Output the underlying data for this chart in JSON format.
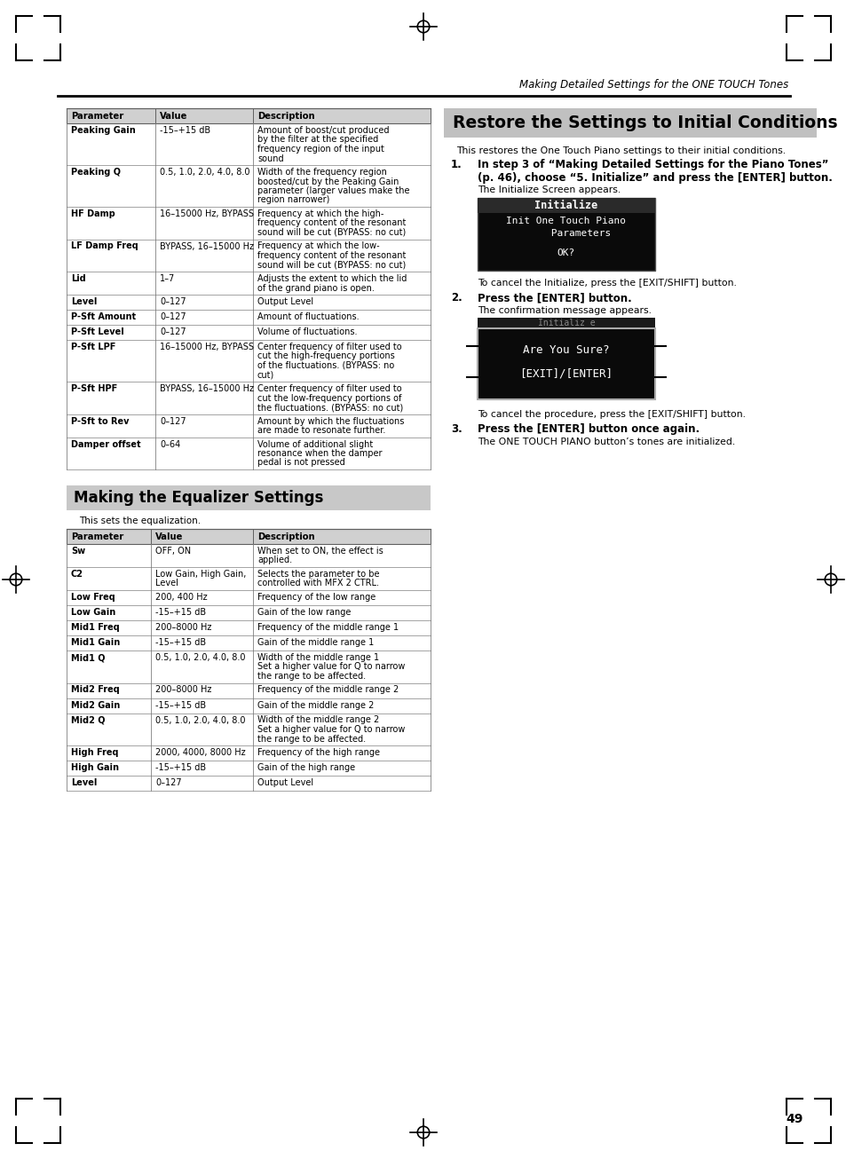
{
  "page_number": "49",
  "header_text": "Making Detailed Settings for the ONE TOUCH Tones",
  "section1_title": "Restore the Settings to Initial Conditions",
  "section1_intro": "This restores the One Touch Piano settings to their initial conditions.",
  "cancel_text1": "To cancel the Initialize, press the [EXIT/SHIFT] button.",
  "cancel_text2": "To cancel the procedure, press the [EXIT/SHIFT] button.",
  "section2_title": "Making the Equalizer Settings",
  "section2_intro": "This sets the equalization.",
  "table1_header": [
    "Parameter",
    "Value",
    "Description"
  ],
  "table1_rows": [
    [
      "Peaking Gain",
      "-15–+15 dB",
      "Amount of boost/cut produced\nby the filter at the specified\nfrequency region of the input\nsound"
    ],
    [
      "Peaking Q",
      "0.5, 1.0, 2.0, 4.0, 8.0",
      "Width of the frequency region\nboosted/cut by the Peaking Gain\nparameter (larger values make the\nregion narrower)"
    ],
    [
      "HF Damp",
      "16–15000 Hz, BYPASS",
      "Frequency at which the high-\nfrequency content of the resonant\nsound will be cut (BYPASS: no cut)"
    ],
    [
      "LF Damp Freq",
      "BYPASS, 16–15000 Hz",
      "Frequency at which the low-\nfrequency content of the resonant\nsound will be cut (BYPASS: no cut)"
    ],
    [
      "Lid",
      "1–7",
      "Adjusts the extent to which the lid\nof the grand piano is open."
    ],
    [
      "Level",
      "0–127",
      "Output Level"
    ],
    [
      "P-Sft Amount",
      "0–127",
      "Amount of fluctuations."
    ],
    [
      "P-Sft Level",
      "0–127",
      "Volume of fluctuations."
    ],
    [
      "P-Sft LPF",
      "16–15000 Hz, BYPASS",
      "Center frequency of filter used to\ncut the high-frequency portions\nof the fluctuations. (BYPASS: no\ncut)"
    ],
    [
      "P-Sft HPF",
      "BYPASS, 16–15000 Hz",
      "Center frequency of filter used to\ncut the low-frequency portions of\nthe fluctuations. (BYPASS: no cut)"
    ],
    [
      "P-Sft to Rev",
      "0–127",
      "Amount by which the fluctuations\nare made to resonate further."
    ],
    [
      "Damper offset",
      "0–64",
      "Volume of additional slight\nresonance when the damper\npedal is not pressed"
    ]
  ],
  "table2_header": [
    "Parameter",
    "Value",
    "Description"
  ],
  "table2_rows": [
    [
      "Sw",
      "OFF, ON",
      "When set to ON, the effect is\napplied."
    ],
    [
      "C2",
      "Low Gain, High Gain,\nLevel",
      "Selects the parameter to be\ncontrolled with MFX 2 CTRL."
    ],
    [
      "Low Freq",
      "200, 400 Hz",
      "Frequency of the low range"
    ],
    [
      "Low Gain",
      "-15–+15 dB",
      "Gain of the low range"
    ],
    [
      "Mid1 Freq",
      "200–8000 Hz",
      "Frequency of the middle range 1"
    ],
    [
      "Mid1 Gain",
      "-15–+15 dB",
      "Gain of the middle range 1"
    ],
    [
      "Mid1 Q",
      "0.5, 1.0, 2.0, 4.0, 8.0",
      "Width of the middle range 1\nSet a higher value for Q to narrow\nthe range to be affected."
    ],
    [
      "Mid2 Freq",
      "200–8000 Hz",
      "Frequency of the middle range 2"
    ],
    [
      "Mid2 Gain",
      "-15–+15 dB",
      "Gain of the middle range 2"
    ],
    [
      "Mid2 Q",
      "0.5, 1.0, 2.0, 4.0, 8.0",
      "Width of the middle range 2\nSet a higher value for Q to narrow\nthe range to be affected."
    ],
    [
      "High Freq",
      "2000, 4000, 8000 Hz",
      "Frequency of the high range"
    ],
    [
      "High Gain",
      "-15–+15 dB",
      "Gain of the high range"
    ],
    [
      "Level",
      "0–127",
      "Output Level"
    ]
  ]
}
